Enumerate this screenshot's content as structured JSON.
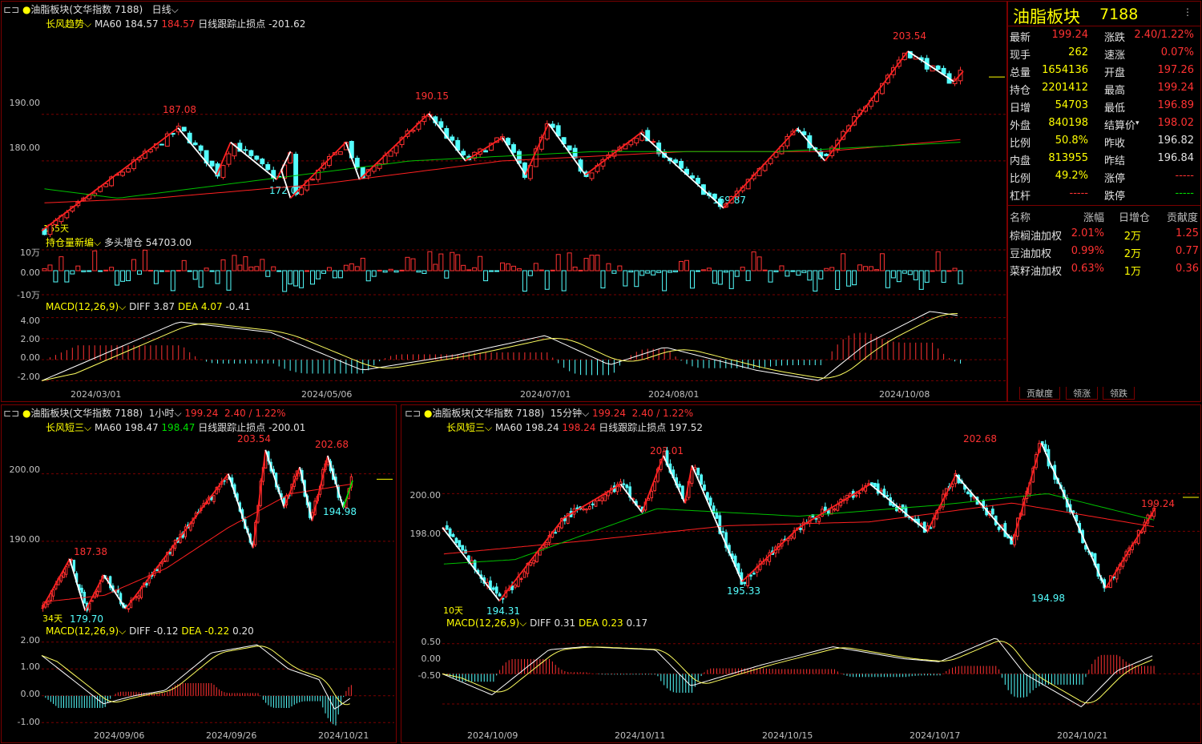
{
  "colors": {
    "up": "#ff3232",
    "down": "#54ffff",
    "ma": "#ff2020",
    "white": "#ffffff",
    "yellow": "#ffff00",
    "green": "#00e000",
    "grid": "#7a0000"
  },
  "main": {
    "title": "油脂板块(文华指数 7188)",
    "period": "日线",
    "ind": {
      "name": "长风趋势",
      "ma": "MA60 184.57",
      "ma_val": "184.57",
      "stop": "日线跟踪止损点 -201.62"
    },
    "oi": {
      "name": "持仓量新编",
      "txt": "多头增仓 54703.00"
    },
    "macd": {
      "name": "MACD(12,26,9)",
      "diff": "DIFF 3.87",
      "dea": "DEA 4.07",
      "val": "-0.41"
    },
    "days": "165天",
    "yticks": [
      "190.00",
      "180.00"
    ],
    "oiticks": [
      "10万",
      "0.00",
      "-10万"
    ],
    "macdticks": [
      "4.00",
      "2.00",
      "0.00",
      "-2.00"
    ],
    "dates": [
      "2024/03/01",
      "2024/05/06",
      "2024/07/01",
      "2024/08/01",
      "2024/10/08"
    ],
    "peaks": [
      {
        "v": "187.08"
      },
      {
        "v": "190.15"
      },
      {
        "v": "203.54"
      }
    ],
    "troughs": [
      {
        "v": "172.02"
      },
      {
        "v": "169.87"
      }
    ]
  },
  "h1": {
    "title": "油脂板块(文华指数 7188)",
    "period": "1小时",
    "price": "199.24",
    "chg": "2.40 / 1.22%",
    "ind": {
      "name": "长风短三",
      "ma": "MA60 198.47",
      "ma_val": "198.47",
      "stop": "日线跟踪止损点 -200.01"
    },
    "macd": {
      "name": "MACD(12,26,9)",
      "diff": "DIFF -0.12",
      "dea": "DEA -0.22",
      "val": "0.20"
    },
    "days": "34天",
    "yticks": [
      "200.00",
      "190.00"
    ],
    "macdticks": [
      "2.00",
      "1.00",
      "0.00",
      "-1.00"
    ],
    "dates": [
      "2024/09/06",
      "2024/09/26",
      "2024/10/21"
    ],
    "labels": [
      {
        "v": "203.54"
      },
      {
        "v": "202.68"
      },
      {
        "v": "187.38"
      },
      {
        "v": "179.70"
      },
      {
        "v": "194.98"
      }
    ]
  },
  "m15": {
    "title": "油脂板块(文华指数 7188)",
    "period": "15分钟",
    "price": "199.24",
    "chg": "2.40 / 1.22%",
    "ind": {
      "name": "长风短三",
      "ma": "MA60 198.24",
      "ma_val": "198.24",
      "stop": "日线跟踪止损点 197.52"
    },
    "macd": {
      "name": "MACD(12,26,9)",
      "diff": "DIFF 0.31",
      "dea": "DEA 0.23",
      "val": "0.17"
    },
    "days": "10天",
    "yticks": [
      "200.00",
      "198.00"
    ],
    "macdticks": [
      "0.50",
      "0.00",
      "-0.50"
    ],
    "dates": [
      "2024/10/09",
      "2024/10/11",
      "2024/10/15",
      "2024/10/17",
      "2024/10/21"
    ],
    "labels": [
      {
        "v": "202.01"
      },
      {
        "v": "202.68"
      },
      {
        "v": "199.24"
      },
      {
        "v": "194.31"
      },
      {
        "v": "195.33"
      },
      {
        "v": "194.98"
      }
    ]
  },
  "quote": {
    "name": "油脂板块",
    "code": "7188",
    "rows": [
      {
        "l1": "最新",
        "v1": "199.24",
        "l2": "涨跌",
        "v2": "2.40/1.22%"
      },
      {
        "l1": "现手",
        "v1": "262",
        "l2": "速涨",
        "v2": "0.07%"
      },
      {
        "l1": "总量",
        "v1": "1654136",
        "l2": "开盘",
        "v2": "197.26"
      },
      {
        "l1": "持仓",
        "v1": "2201412",
        "l2": "最高",
        "v2": "199.24"
      },
      {
        "l1": "日增",
        "v1": "54703",
        "l2": "最低",
        "v2": "196.89"
      },
      {
        "l1": "外盘",
        "v1": "840198",
        "l2": "结算价",
        "v2": "198.02"
      },
      {
        "l1": "比例",
        "v1": "50.8%",
        "l2": "昨收",
        "v2": "196.82"
      },
      {
        "l1": "内盘",
        "v1": "813955",
        "l2": "昨结",
        "v2": "196.84"
      },
      {
        "l1": "比例",
        "v1": "49.2%",
        "l2": "涨停",
        "v2": "-----"
      },
      {
        "l1": "杠杆",
        "v1": "-----",
        "l2": "跌停",
        "v2": "-----"
      }
    ],
    "table": {
      "headers": [
        "名称",
        "涨幅",
        "日增仓",
        "贡献度"
      ],
      "rows": [
        [
          "棕榈油加权",
          "2.01%",
          "2万",
          "1.25"
        ],
        [
          "豆油加权",
          "0.99%",
          "2万",
          "0.77"
        ],
        [
          "菜籽油加权",
          "0.63%",
          "1万",
          "0.36"
        ]
      ]
    },
    "tabs": [
      "贡献度",
      "领涨",
      "领跌"
    ]
  },
  "chart_data": [
    {
      "type": "candlestick",
      "name": "daily",
      "ylim": [
        164,
        208
      ],
      "ma60_last": 184.57,
      "swing_points": [
        {
          "x": "start",
          "y": 165
        },
        {
          "x": "peak1",
          "y": 187.08
        },
        {
          "x": "low1",
          "y": 172.02
        },
        {
          "x": "peak2",
          "y": 190.15
        },
        {
          "x": "low2",
          "y": 169.87
        },
        {
          "x": "peak3",
          "y": 203.54
        },
        {
          "x": "last",
          "y": 199.24
        }
      ],
      "x_ticks": [
        "2024/03/01",
        "2024/05/06",
        "2024/07/01",
        "2024/08/01",
        "2024/10/08"
      ],
      "open_interest_change_last": 54703,
      "oi_ylim": [
        -100000,
        100000
      ],
      "macd": {
        "diff": 3.87,
        "dea": 4.07,
        "hist": -0.41,
        "ylim": [
          -2.5,
          4.5
        ]
      }
    },
    {
      "type": "candlestick",
      "name": "1h",
      "ylim": [
        178,
        206
      ],
      "ma60_last": 198.47,
      "swing_points": [
        {
          "x": "low",
          "y": 179.7
        },
        {
          "x": "peak",
          "y": 187.38
        },
        {
          "x": "peak",
          "y": 203.54
        },
        {
          "x": "peak",
          "y": 202.68
        },
        {
          "x": "low",
          "y": 194.98
        }
      ],
      "x_ticks": [
        "2024/09/06",
        "2024/09/26",
        "2024/10/21"
      ],
      "macd": {
        "diff": -0.12,
        "dea": -0.22,
        "hist": 0.2,
        "ylim": [
          -1.2,
          2.2
        ]
      }
    },
    {
      "type": "candlestick",
      "name": "15min",
      "ylim": [
        193.6,
        203.2
      ],
      "ma60_last": 198.24,
      "swing_points": [
        {
          "x": "low",
          "y": 194.31
        },
        {
          "x": "peak",
          "y": 202.01
        },
        {
          "x": "low",
          "y": 195.33
        },
        {
          "x": "peak",
          "y": 202.68
        },
        {
          "x": "low",
          "y": 194.98
        },
        {
          "x": "last",
          "y": 199.24
        }
      ],
      "x_ticks": [
        "2024/10/09",
        "2024/10/11",
        "2024/10/15",
        "2024/10/17",
        "2024/10/21"
      ],
      "macd": {
        "diff": 0.31,
        "dea": 0.23,
        "hist": 0.17,
        "ylim": [
          -0.9,
          0.75
        ]
      }
    }
  ]
}
